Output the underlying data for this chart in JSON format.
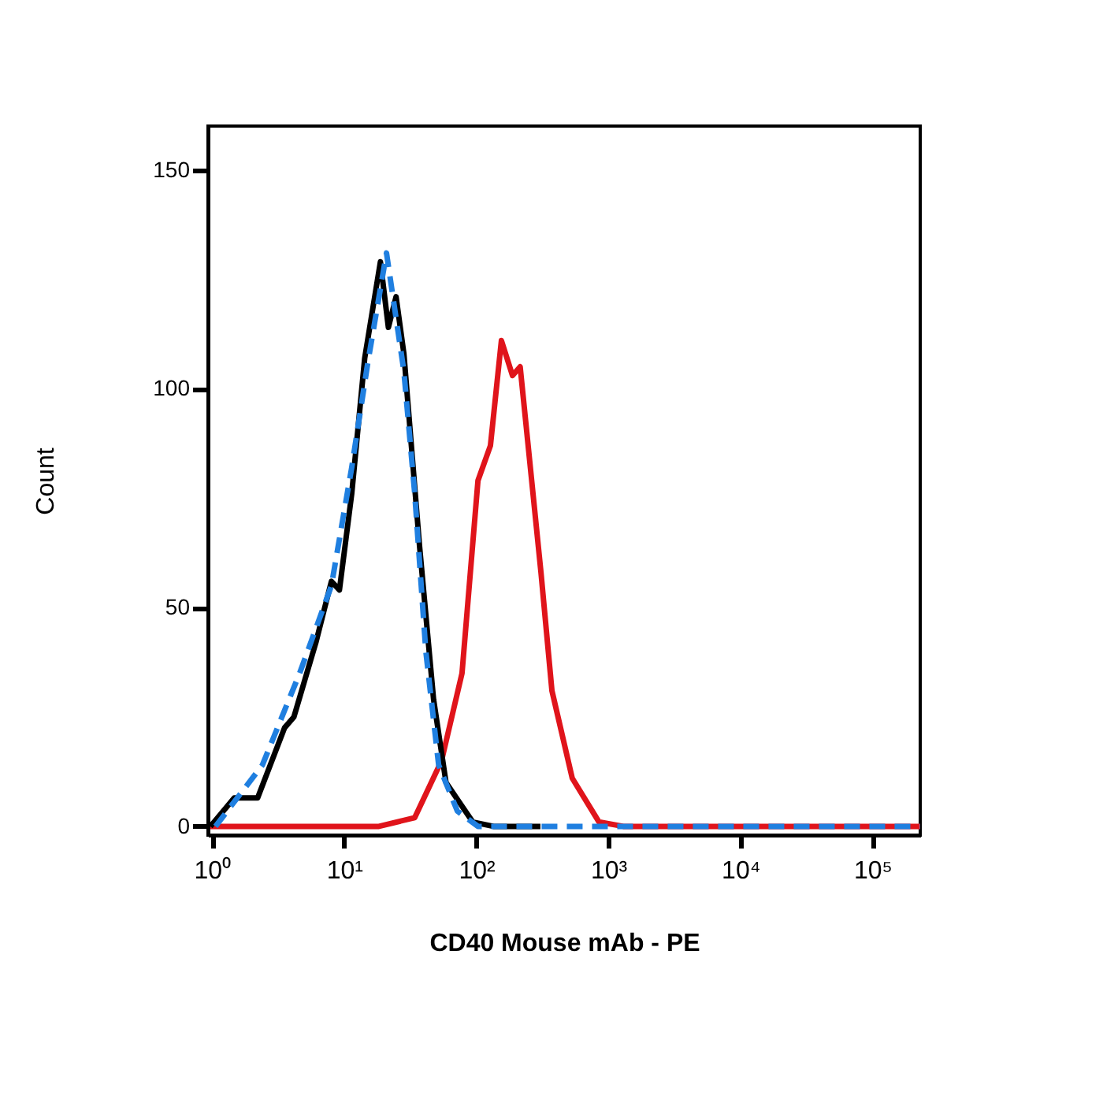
{
  "chart_data": {
    "type": "line",
    "xlabel": "CD40 Mouse mAb - PE",
    "ylabel": "Count",
    "log": "x",
    "xlim": [
      0.93,
      230000
    ],
    "ylim": [
      -2,
      160
    ],
    "xticks": [
      {
        "value": 1,
        "label": "10⁰"
      },
      {
        "value": 10,
        "label": "10¹"
      },
      {
        "value": 100,
        "label": "10²"
      },
      {
        "value": 1000,
        "label": "10³"
      },
      {
        "value": 10000,
        "label": "10⁴"
      },
      {
        "value": 100000,
        "label": "10⁵"
      }
    ],
    "yticks": [
      0,
      50,
      100,
      150
    ],
    "grid": false,
    "marker": "none",
    "series": [
      {
        "color": "#e0141b",
        "line_style": "solid",
        "x": [
          0.97,
          18.3,
          34.2,
          54.6,
          78,
          103,
          128,
          155,
          188,
          215,
          309,
          374,
          533,
          850,
          1300,
          230000
        ],
        "values": [
          0,
          0,
          2,
          15,
          35,
          79,
          87,
          111,
          103,
          105,
          58,
          31,
          11,
          1,
          0,
          0
        ]
      },
      {
        "color": "#000000",
        "line_style": "solid",
        "x": [
          0.97,
          1.47,
          2.21,
          3.53,
          4.16,
          6.1,
          8.0,
          9.2,
          11.4,
          14.3,
          18.8,
          21.6,
          24.7,
          28.3,
          37.2,
          47.5,
          59,
          94,
          135,
          306
        ],
        "values": [
          0,
          6.5,
          6.5,
          22.5,
          25,
          42,
          56,
          54,
          76,
          107,
          129,
          114,
          121,
          108,
          64,
          29,
          10,
          1,
          0,
          0
        ]
      },
      {
        "color": "#1f7fe0",
        "line_style": "dashed",
        "x": [
          1.06,
          2.4,
          4.6,
          8.0,
          11.4,
          15.1,
          20.9,
          28.3,
          34.2,
          41.5,
          51.9,
          71.9,
          103,
          230000
        ],
        "values": [
          0,
          14,
          35,
          55,
          82,
          106,
          131,
          104,
          76,
          40,
          14,
          3.5,
          0,
          0
        ]
      }
    ]
  }
}
